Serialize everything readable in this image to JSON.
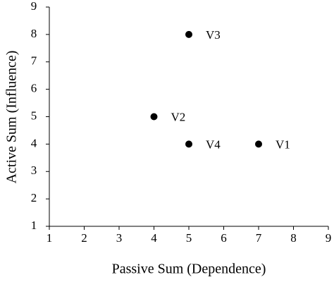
{
  "chart_data": {
    "type": "scatter",
    "x_label": "Passive Sum (Dependence)",
    "y_label": "Active Sum (Influence)",
    "labels": [
      "V1",
      "V2",
      "V3",
      "V4"
    ],
    "x": [
      7,
      4,
      5,
      5
    ],
    "values": [
      4,
      5,
      8,
      4
    ],
    "color": "#000000",
    "xlim": [
      1,
      9
    ],
    "xticks": [
      1,
      2,
      3,
      4,
      5,
      6,
      7,
      8,
      9
    ],
    "ylim": [
      1,
      9
    ],
    "yticks": [
      1,
      2,
      3,
      4,
      5,
      6,
      7,
      8,
      9
    ],
    "grid": false
  }
}
